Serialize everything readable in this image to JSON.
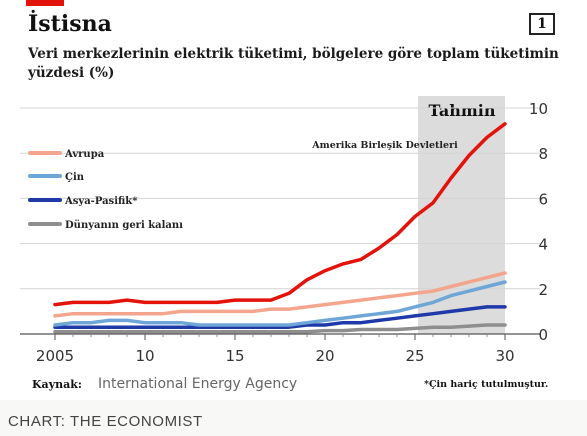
{
  "header": {
    "title": "İstisna",
    "badge": "1",
    "subtitle": "Veri merkezlerinin elektrik tüketimi, bölgelere göre toplam tüketimin yüzdesi (%)"
  },
  "footer": {
    "source_label": "Kaynak:",
    "source_value": "International Energy Agency",
    "footnote": "*Çin hariç tutulmuştur.",
    "credit": "CHART: THE ECONOMIST"
  },
  "colors": {
    "accent_red": "#e3120b",
    "forecast_band": "#dcdcdc"
  },
  "chart_data": {
    "type": "line",
    "forecast_label": "Tahmin",
    "forecast_range": [
      2025,
      2030
    ],
    "xlim": [
      2005,
      2030
    ],
    "ylim": [
      0,
      10
    ],
    "x_ticks": [
      "2005",
      "10",
      "15",
      "20",
      "25",
      "30"
    ],
    "y_ticks": [
      "0",
      "2",
      "4",
      "6",
      "8",
      "10"
    ],
    "y_axis_position": "right",
    "grid": "horizontal",
    "legend_position": "top-left",
    "annotation": "Amerika Birleşik Devletleri",
    "series": [
      {
        "name": "Amerika Birleşik Devletleri",
        "color": "#e3120b",
        "x": [
          2005,
          2006,
          2007,
          2008,
          2009,
          2010,
          2011,
          2012,
          2013,
          2014,
          2015,
          2016,
          2017,
          2018,
          2019,
          2020,
          2021,
          2022,
          2023,
          2024,
          2025,
          2026,
          2027,
          2028,
          2029,
          2030
        ],
        "y": [
          1.3,
          1.4,
          1.4,
          1.4,
          1.5,
          1.4,
          1.4,
          1.4,
          1.4,
          1.4,
          1.5,
          1.5,
          1.5,
          1.8,
          2.4,
          2.8,
          3.1,
          3.3,
          3.8,
          4.4,
          5.2,
          5.8,
          6.9,
          7.9,
          8.7,
          9.3
        ]
      },
      {
        "name": "Avrupa",
        "color": "#f4a58e",
        "x": [
          2005,
          2006,
          2007,
          2008,
          2009,
          2010,
          2011,
          2012,
          2013,
          2014,
          2015,
          2016,
          2017,
          2018,
          2019,
          2020,
          2021,
          2022,
          2023,
          2024,
          2025,
          2026,
          2027,
          2028,
          2029,
          2030
        ],
        "y": [
          0.8,
          0.9,
          0.9,
          0.9,
          0.9,
          0.9,
          0.9,
          1.0,
          1.0,
          1.0,
          1.0,
          1.0,
          1.1,
          1.1,
          1.2,
          1.3,
          1.4,
          1.5,
          1.6,
          1.7,
          1.8,
          1.9,
          2.1,
          2.3,
          2.5,
          2.7
        ]
      },
      {
        "name": "Çin",
        "color": "#6ea6d8",
        "x": [
          2005,
          2006,
          2007,
          2008,
          2009,
          2010,
          2011,
          2012,
          2013,
          2014,
          2015,
          2016,
          2017,
          2018,
          2019,
          2020,
          2021,
          2022,
          2023,
          2024,
          2025,
          2026,
          2027,
          2028,
          2029,
          2030
        ],
        "y": [
          0.4,
          0.5,
          0.5,
          0.6,
          0.6,
          0.5,
          0.5,
          0.5,
          0.4,
          0.4,
          0.4,
          0.4,
          0.4,
          0.4,
          0.5,
          0.6,
          0.7,
          0.8,
          0.9,
          1.0,
          1.2,
          1.4,
          1.7,
          1.9,
          2.1,
          2.3
        ]
      },
      {
        "name": "Asya-Pasifik*",
        "color": "#1f3aa8",
        "x": [
          2005,
          2006,
          2007,
          2008,
          2009,
          2010,
          2011,
          2012,
          2013,
          2014,
          2015,
          2016,
          2017,
          2018,
          2019,
          2020,
          2021,
          2022,
          2023,
          2024,
          2025,
          2026,
          2027,
          2028,
          2029,
          2030
        ],
        "y": [
          0.3,
          0.3,
          0.3,
          0.3,
          0.3,
          0.3,
          0.3,
          0.3,
          0.3,
          0.3,
          0.3,
          0.3,
          0.3,
          0.3,
          0.4,
          0.4,
          0.5,
          0.5,
          0.6,
          0.7,
          0.8,
          0.9,
          1.0,
          1.1,
          1.2,
          1.2
        ]
      },
      {
        "name": "Dünyanın geri kalanı",
        "color": "#8e8e8e",
        "x": [
          2005,
          2006,
          2007,
          2008,
          2009,
          2010,
          2011,
          2012,
          2013,
          2014,
          2015,
          2016,
          2017,
          2018,
          2019,
          2020,
          2021,
          2022,
          2023,
          2024,
          2025,
          2026,
          2027,
          2028,
          2029,
          2030
        ],
        "y": [
          0.1,
          0.1,
          0.1,
          0.1,
          0.1,
          0.1,
          0.1,
          0.1,
          0.1,
          0.1,
          0.1,
          0.1,
          0.1,
          0.1,
          0.1,
          0.15,
          0.15,
          0.2,
          0.2,
          0.2,
          0.25,
          0.3,
          0.3,
          0.35,
          0.4,
          0.4
        ]
      }
    ],
    "legend": [
      "Avrupa",
      "Çin",
      "Asya-Pasifik*",
      "Dünyanın geri kalanı"
    ]
  }
}
